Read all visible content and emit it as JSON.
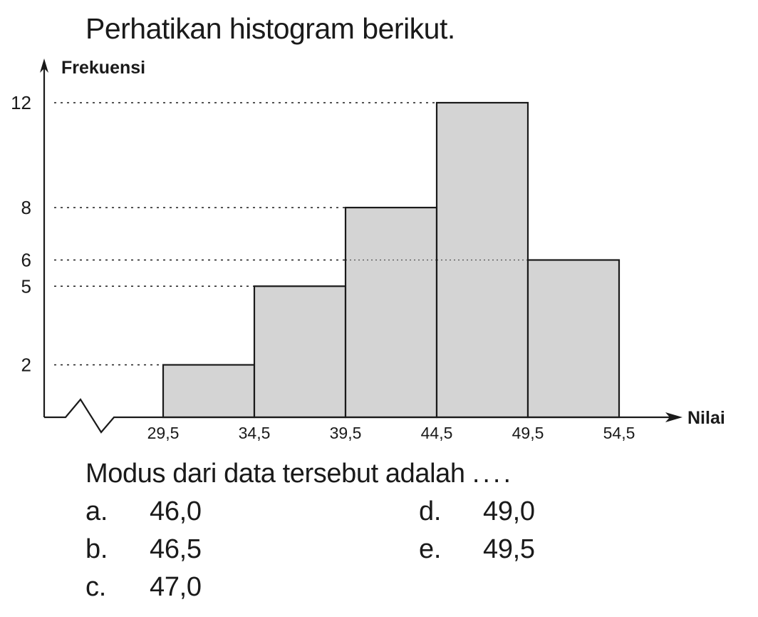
{
  "title": "Perhatikan histogram berikut.",
  "question": "Modus dari data tersebut adalah",
  "question_dots": "....",
  "options": [
    {
      "id": "a",
      "label": "a.",
      "value": "46,0"
    },
    {
      "id": "b",
      "label": "b.",
      "value": "46,5"
    },
    {
      "id": "c",
      "label": "c.",
      "value": "47,0"
    },
    {
      "id": "d",
      "label": "d.",
      "value": "49,0"
    },
    {
      "id": "e",
      "label": "e.",
      "value": "49,5"
    }
  ],
  "chart_data": {
    "type": "bar",
    "histogram": true,
    "ylabel": "Frekuensi",
    "xlabel": "Nilai",
    "bin_edges": [
      29.5,
      34.5,
      39.5,
      44.5,
      49.5,
      54.5
    ],
    "x_tick_labels": [
      "29,5",
      "34,5",
      "39,5",
      "44,5",
      "49,5",
      "54,5"
    ],
    "values": [
      2,
      5,
      8,
      12,
      6
    ],
    "y_ticks": [
      2,
      5,
      6,
      8,
      12
    ],
    "ylim": [
      0,
      12
    ],
    "x_axis_break": true,
    "grid": "dotted lines at y ticks",
    "bar_color": "#d4d4d4",
    "edge_color": "#1a1a1a"
  }
}
